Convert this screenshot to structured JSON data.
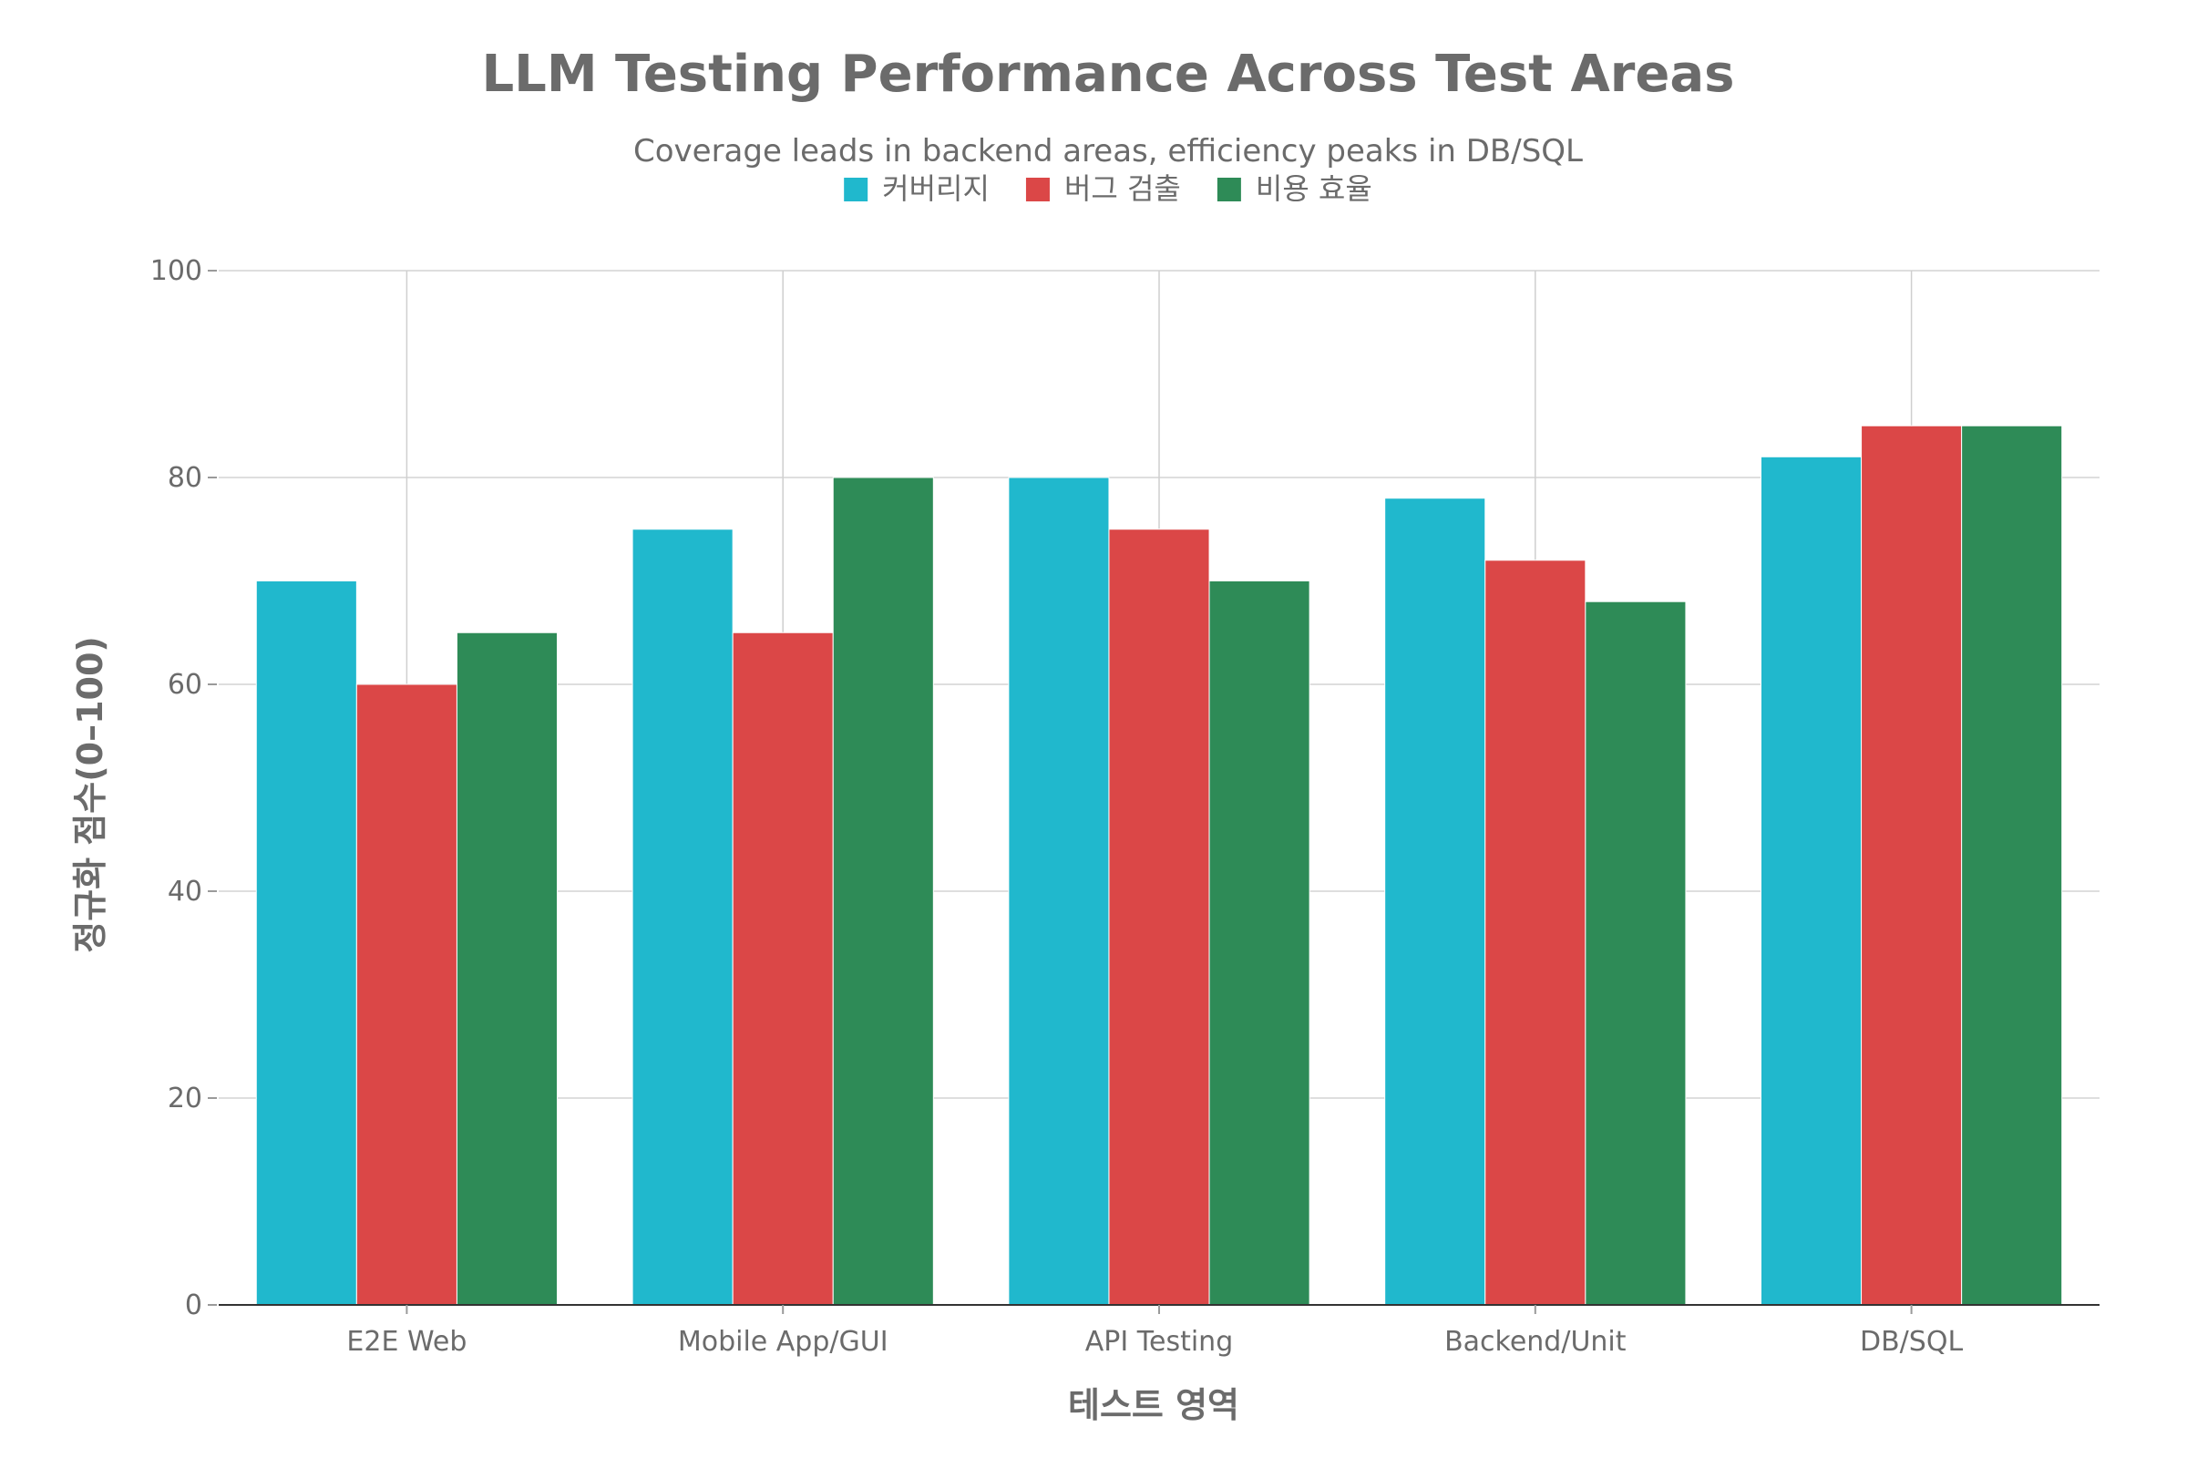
{
  "chart_data": {
    "type": "bar",
    "title": "LLM Testing Performance Across Test Areas",
    "subtitle": "Coverage leads in backend areas, efficiency peaks in DB/SQL",
    "xlabel": "테스트 영역",
    "ylabel": "정규화 점수(0–100)",
    "categories": [
      "E2E Web",
      "Mobile App/GUI",
      "API Testing",
      "Backend/Unit",
      "DB/SQL"
    ],
    "series": [
      {
        "name": "커버리지",
        "color": "#20b8cd",
        "values": [
          70,
          75,
          80,
          78,
          82
        ]
      },
      {
        "name": "버그 검출",
        "color": "#db4747",
        "values": [
          60,
          65,
          75,
          72,
          85
        ]
      },
      {
        "name": "비용 효율",
        "color": "#2e8b57",
        "values": [
          65,
          80,
          70,
          68,
          85
        ]
      }
    ],
    "ylim": [
      0,
      100
    ],
    "yticks": [
      0,
      20,
      40,
      60,
      80,
      100
    ],
    "ytick_labels": [
      "0",
      "20",
      "40",
      "60",
      "80",
      "100"
    ],
    "grid": true,
    "legend_position": "top-center"
  }
}
